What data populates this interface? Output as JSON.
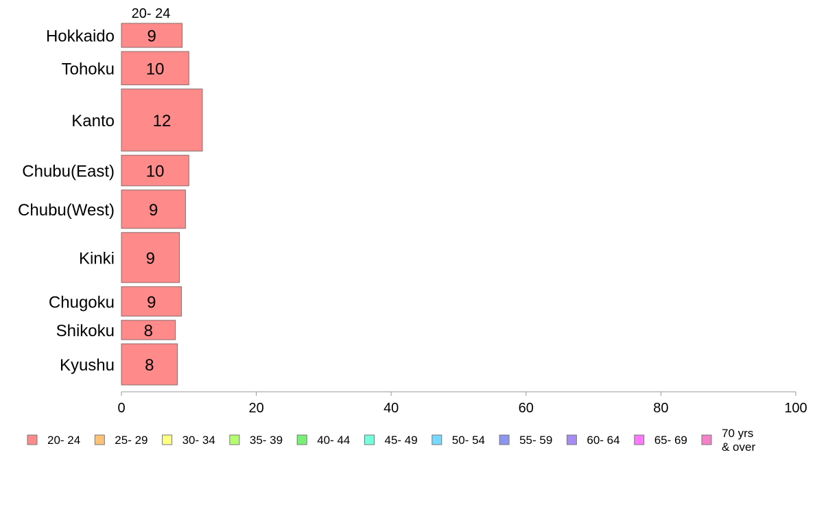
{
  "chart_data": {
    "type": "bar",
    "orientation": "horizontal",
    "column_header": "20- 24",
    "categories": [
      "Hokkaido",
      "Tohoku",
      "Kanto",
      "Chubu(East)",
      "Chubu(West)",
      "Kinki",
      "Chugoku",
      "Shikoku",
      "Kyushu"
    ],
    "category_weights": [
      0.62,
      0.86,
      1.6,
      0.79,
      0.99,
      1.29,
      0.76,
      0.5,
      1.06
    ],
    "series": [
      {
        "name": "20- 24",
        "values": [
          9,
          10,
          12,
          10,
          9,
          9,
          9,
          8,
          8
        ],
        "display_values": [
          9,
          10,
          12,
          10,
          9.5,
          8.6,
          8.9,
          8,
          8.3
        ],
        "color": "#ff8a8a"
      }
    ],
    "xlim": [
      0,
      100
    ],
    "xticks": [
      0,
      20,
      40,
      60,
      80,
      100
    ],
    "grid": false,
    "legend_position": "bottom",
    "legend": [
      {
        "label": "20- 24",
        "color": "#ff8a8a"
      },
      {
        "label": "25- 29",
        "color": "#ffc078"
      },
      {
        "label": "30- 34",
        "color": "#ffff80"
      },
      {
        "label": "35- 39",
        "color": "#b4ff6e"
      },
      {
        "label": "40- 44",
        "color": "#78f078"
      },
      {
        "label": "45- 49",
        "color": "#78ffdc"
      },
      {
        "label": "50- 54",
        "color": "#78d8ff"
      },
      {
        "label": "55- 59",
        "color": "#8c96f0"
      },
      {
        "label": "60- 64",
        "color": "#a88cf5"
      },
      {
        "label": "65- 69",
        "color": "#ff78ff"
      },
      {
        "label": "70 yrs\n& over",
        "color": "#f582c8"
      }
    ]
  }
}
